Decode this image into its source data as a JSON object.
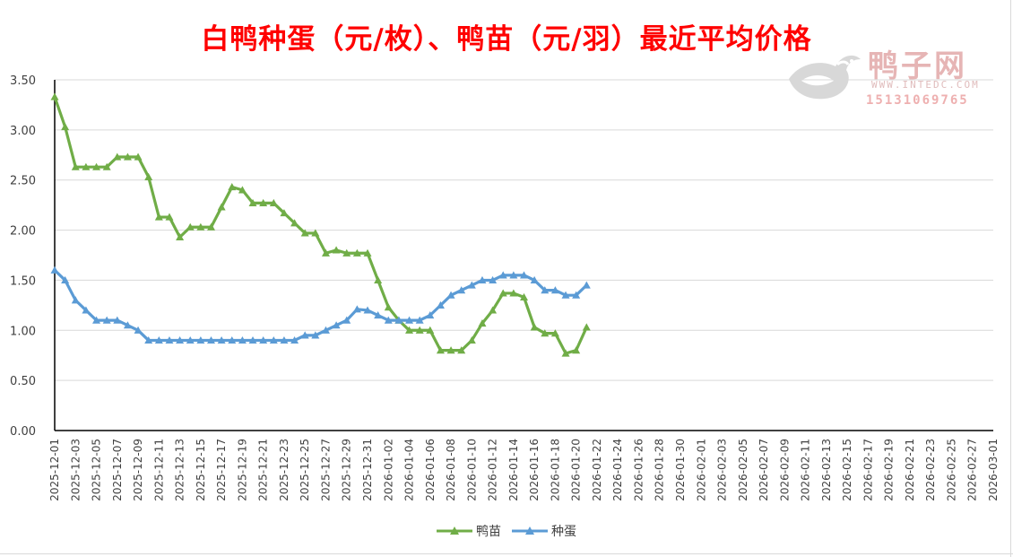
{
  "chart_data": {
    "type": "line",
    "title": "白鸭种蛋（元/枚）、鸭苗（元/羽）最近平均价格",
    "title_color": "#ff0000",
    "xlabel": "",
    "ylabel": "",
    "ylim": [
      0,
      3.5
    ],
    "ytick_labels": [
      "0.00",
      "0.50",
      "1.00",
      "1.50",
      "2.00",
      "2.50",
      "3.00",
      "3.50"
    ],
    "xtick_labels": [
      "2025-12-01",
      "2025-12-03",
      "2025-12-05",
      "2025-12-07",
      "2025-12-09",
      "2025-12-11",
      "2025-12-13",
      "2025-12-15",
      "2025-12-17",
      "2025-12-19",
      "2025-12-21",
      "2025-12-23",
      "2025-12-25",
      "2025-12-27",
      "2025-12-29",
      "2025-12-31",
      "2026-01-02",
      "2026-01-04",
      "2026-01-06",
      "2026-01-08",
      "2026-01-10",
      "2026-01-12",
      "2026-01-14",
      "2026-01-16",
      "2026-01-18",
      "2026-01-20",
      "2026-01-22",
      "2026-01-24",
      "2026-01-26",
      "2026-01-28",
      "2026-01-30",
      "2026-02-01",
      "2026-02-03",
      "2026-02-05",
      "2026-02-07",
      "2026-02-09",
      "2026-02-11",
      "2026-02-13",
      "2026-02-15",
      "2026-02-17",
      "2026-02-19",
      "2026-02-21",
      "2026-02-23",
      "2026-02-25",
      "2026-02-27",
      "2026-03-01"
    ],
    "grid": true,
    "legend_position": "bottom",
    "marker": "triangle",
    "series": [
      {
        "name": "鸭苗",
        "color": "#70ad47",
        "values": [
          3.33,
          3.03,
          2.63,
          2.63,
          2.63,
          2.63,
          2.73,
          2.73,
          2.73,
          2.53,
          2.13,
          2.13,
          1.93,
          2.03,
          2.03,
          2.03,
          2.23,
          2.43,
          2.4,
          2.27,
          2.27,
          2.27,
          2.17,
          2.07,
          1.97,
          1.97,
          1.77,
          1.8,
          1.77,
          1.77,
          1.77,
          1.5,
          1.23,
          1.1,
          1.0,
          1.0,
          1.0,
          0.8,
          0.8,
          0.8,
          0.9,
          1.07,
          1.2,
          1.37,
          1.37,
          1.33,
          1.03,
          0.97,
          0.97,
          0.77,
          0.8,
          1.03
        ]
      },
      {
        "name": "种蛋",
        "color": "#5b9bd5",
        "values": [
          1.6,
          1.5,
          1.3,
          1.2,
          1.1,
          1.1,
          1.1,
          1.05,
          1.0,
          0.9,
          0.9,
          0.9,
          0.9,
          0.9,
          0.9,
          0.9,
          0.9,
          0.9,
          0.9,
          0.9,
          0.9,
          0.9,
          0.9,
          0.9,
          0.95,
          0.95,
          1.0,
          1.05,
          1.1,
          1.21,
          1.2,
          1.15,
          1.1,
          1.1,
          1.1,
          1.1,
          1.15,
          1.25,
          1.35,
          1.4,
          1.45,
          1.5,
          1.5,
          1.55,
          1.55,
          1.55,
          1.5,
          1.4,
          1.4,
          1.35,
          1.35,
          1.45
        ]
      }
    ]
  },
  "watermark": {
    "name": "鸭子网",
    "url": "WWW.INTEDC.COM",
    "phone": "15131069765"
  }
}
